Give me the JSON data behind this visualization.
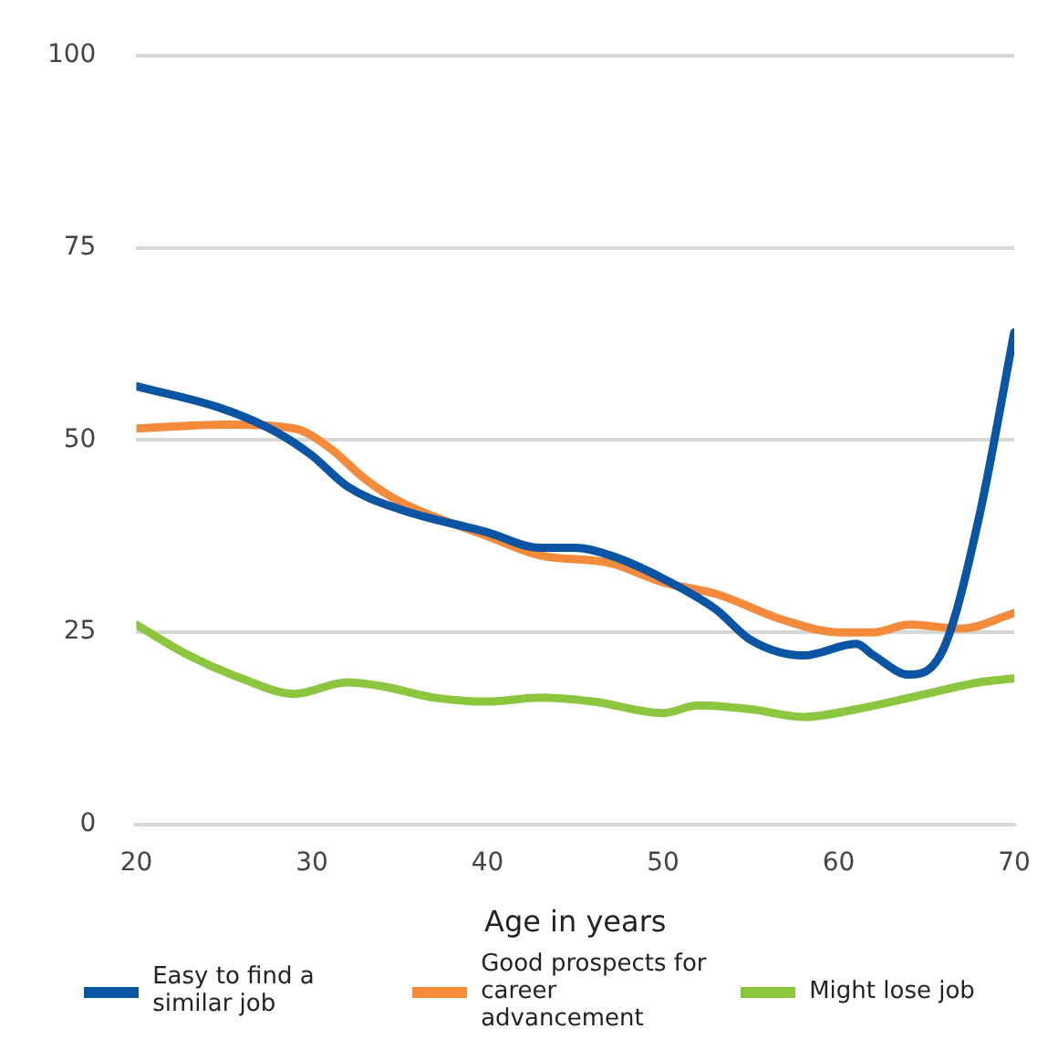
{
  "chart_data": {
    "type": "line",
    "xlabel": "Age in years",
    "xlim": [
      20,
      70
    ],
    "xticks": [
      20,
      30,
      40,
      50,
      60,
      70
    ],
    "ylim": [
      0,
      100
    ],
    "yticks": [
      0,
      25,
      50,
      75,
      100
    ],
    "grid": "y",
    "legend": "bottom",
    "marker": "none",
    "line_style": "solid",
    "series": [
      {
        "name": "Easy to find a similar job",
        "color": "#0a55a3",
        "x": [
          20,
          25,
          28,
          30,
          32,
          35,
          40,
          43,
          45,
          47,
          50,
          53,
          55,
          58,
          61,
          62,
          64,
          66,
          68,
          70
        ],
        "values": [
          57,
          54,
          51,
          48,
          44,
          41,
          38,
          36,
          36,
          35,
          32,
          28,
          24,
          22,
          23.5,
          22,
          19.5,
          23,
          40,
          64
        ]
      },
      {
        "name": "Good prospects for career advancement",
        "color": "#f58a3a",
        "x": [
          20,
          25,
          29,
          31,
          33,
          35,
          40,
          43,
          47,
          50,
          53,
          57,
          60,
          62,
          64,
          67,
          70
        ],
        "values": [
          51.5,
          52,
          51.5,
          49,
          45,
          42,
          37.5,
          35,
          34,
          31.5,
          30,
          26.5,
          25,
          25,
          26,
          25.5,
          27.5
        ]
      },
      {
        "name": "Might lose job",
        "color": "#8cc63f",
        "x": [
          20,
          23,
          26,
          29,
          32,
          34,
          37,
          40,
          43,
          46,
          50,
          52,
          55,
          58,
          61,
          65,
          68,
          70
        ],
        "values": [
          26,
          22,
          19,
          17,
          18.5,
          18,
          16.5,
          16,
          16.5,
          16,
          14.5,
          15.5,
          15,
          14,
          15,
          17,
          18.5,
          19
        ]
      }
    ]
  }
}
